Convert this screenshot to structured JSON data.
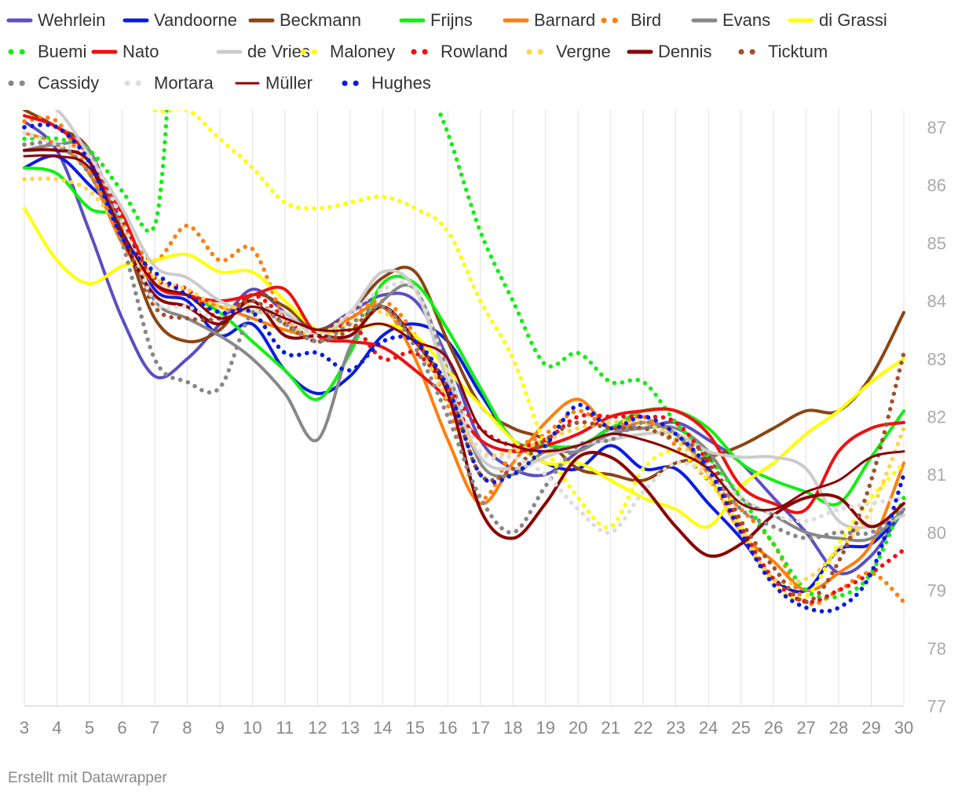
{
  "footer": "Erstellt mit Datawrapper",
  "chart_data": {
    "type": "line",
    "title": "",
    "xlabel": "",
    "ylabel": "",
    "x": [
      3,
      4,
      5,
      6,
      7,
      8,
      9,
      10,
      11,
      12,
      13,
      14,
      15,
      16,
      17,
      18,
      19,
      20,
      21,
      22,
      23,
      24,
      25,
      26,
      27,
      28,
      29,
      30
    ],
    "xlim": [
      3,
      30
    ],
    "ylim": [
      77,
      87
    ],
    "yticks": [
      77,
      78,
      79,
      80,
      81,
      82,
      83,
      84,
      85,
      86,
      87
    ],
    "y_axis_position": "right",
    "grid": "vertical",
    "legend_position": "top",
    "series": [
      {
        "name": "Wehrlein",
        "color": "#5b4fc2",
        "style": "solid",
        "values": [
          87.1,
          86.6,
          85.2,
          83.7,
          82.7,
          83.0,
          83.6,
          84.2,
          83.8,
          83.5,
          83.8,
          84.1,
          84.0,
          83.0,
          81.6,
          81.1,
          81.0,
          81.4,
          81.8,
          81.8,
          81.9,
          81.6,
          81.2,
          80.6,
          80.0,
          79.3,
          79.6,
          80.4
        ]
      },
      {
        "name": "Vandoorne",
        "color": "#0a1ce0",
        "style": "solid",
        "values": [
          86.3,
          86.5,
          86.0,
          85.4,
          84.2,
          84.0,
          83.4,
          83.6,
          82.8,
          82.4,
          82.7,
          83.4,
          83.6,
          83.3,
          82.4,
          81.6,
          81.2,
          81.1,
          81.5,
          81.1,
          81.1,
          80.5,
          79.9,
          79.2,
          79.0,
          79.7,
          79.8,
          80.4
        ]
      },
      {
        "name": "Beckmann",
        "color": "#8b4513",
        "style": "solid",
        "values": [
          87.3,
          87.0,
          86.6,
          85.2,
          83.7,
          83.3,
          83.5,
          84.1,
          83.9,
          83.5,
          83.8,
          84.4,
          84.5,
          83.3,
          82.2,
          81.8,
          81.6,
          81.1,
          81.0,
          80.9,
          81.2,
          81.3,
          81.5,
          81.8,
          82.1,
          82.1,
          82.7,
          83.8
        ]
      },
      {
        "name": "Frijns",
        "color": "#11f011",
        "style": "solid",
        "values": [
          86.3,
          86.2,
          85.6,
          85.4,
          84.3,
          84.1,
          83.8,
          83.3,
          82.8,
          82.3,
          83.1,
          84.3,
          84.3,
          83.5,
          82.5,
          81.6,
          81.5,
          81.5,
          81.8,
          82.1,
          82.1,
          81.8,
          81.2,
          80.9,
          80.7,
          80.5,
          81.3,
          82.1
        ]
      },
      {
        "name": "Barnard",
        "color": "#ff7f0e",
        "style": "solid",
        "values": [
          86.9,
          86.7,
          86.2,
          85.0,
          84.3,
          84.1,
          83.9,
          83.7,
          83.5,
          83.4,
          83.7,
          83.9,
          83.0,
          81.6,
          80.5,
          81.2,
          81.9,
          82.3,
          81.8,
          81.9,
          81.7,
          81.0,
          80.0,
          79.5,
          79.0,
          79.3,
          79.8,
          81.2
        ]
      },
      {
        "name": "Bird",
        "color": "#ff7f0e",
        "style": "dotted",
        "values": [
          87.1,
          87.1,
          86.2,
          85.3,
          84.7,
          85.3,
          84.7,
          84.9,
          83.7,
          83.4,
          83.7,
          84.0,
          83.4,
          82.2,
          80.6,
          81.4,
          81.7,
          82.1,
          81.8,
          82.0,
          81.5,
          80.9,
          80.4,
          79.8,
          78.8,
          79.0,
          79.3,
          78.8
        ]
      },
      {
        "name": "Evans",
        "color": "#888888",
        "style": "solid",
        "values": [
          86.6,
          86.7,
          86.6,
          85.2,
          84.0,
          83.7,
          83.4,
          83.0,
          82.4,
          81.6,
          83.2,
          84.0,
          84.2,
          82.8,
          81.2,
          81.0,
          81.4,
          81.4,
          81.7,
          81.8,
          81.8,
          81.4,
          80.6,
          80.3,
          80.0,
          79.9,
          79.9,
          80.4
        ]
      },
      {
        "name": "di Grassi",
        "color": "#ffff00",
        "style": "solid",
        "values": [
          85.6,
          84.7,
          84.3,
          84.6,
          84.7,
          84.8,
          84.5,
          84.5,
          84.0,
          83.5,
          83.5,
          83.6,
          83.4,
          82.8,
          82.2,
          81.6,
          81.2,
          81.2,
          80.9,
          80.6,
          80.4,
          80.1,
          80.8,
          81.2,
          81.7,
          82.1,
          82.6,
          83.0
        ]
      },
      {
        "name": "Buemi",
        "color": "#11f011",
        "style": "dotted",
        "values": [
          86.8,
          86.8,
          86.6,
          85.9,
          85.3,
          null,
          null,
          null,
          null,
          null,
          null,
          null,
          null,
          86.9,
          85.2,
          84.0,
          82.9,
          83.1,
          82.6,
          82.6,
          81.9,
          81.3,
          80.6,
          79.8,
          79.0,
          78.9,
          79.3,
          80.6
        ]
      },
      {
        "name": "Nato",
        "color": "#ee1111",
        "style": "solid",
        "values": [
          87.2,
          87.0,
          86.5,
          85.5,
          84.3,
          84.1,
          84.0,
          84.1,
          84.2,
          83.4,
          83.3,
          83.2,
          82.8,
          82.3,
          81.6,
          81.4,
          81.5,
          81.7,
          82.0,
          82.1,
          82.1,
          81.7,
          80.8,
          80.5,
          80.4,
          81.4,
          81.8,
          81.9
        ]
      },
      {
        "name": "de Vries",
        "color": "#cccccc",
        "style": "solid",
        "values": [
          87.4,
          87.3,
          86.5,
          85.6,
          84.6,
          84.4,
          84.0,
          83.8,
          83.8,
          83.4,
          83.8,
          84.5,
          84.2,
          82.6,
          81.3,
          81.1,
          81.3,
          81.5,
          81.6,
          81.7,
          81.7,
          81.4,
          81.3,
          81.3,
          81.1,
          80.2,
          80.1,
          80.3
        ]
      },
      {
        "name": "Maloney",
        "color": "#ffff00",
        "style": "dotted",
        "values": [
          null,
          null,
          null,
          null,
          87.3,
          87.3,
          86.8,
          86.3,
          85.7,
          85.6,
          85.7,
          85.8,
          85.6,
          85.2,
          84.0,
          83.0,
          81.5,
          80.6,
          80.1,
          81.1,
          81.4,
          80.9,
          80.1,
          79.1,
          78.9,
          79.8,
          80.6,
          81.2
        ]
      },
      {
        "name": "Rowland",
        "color": "#ee1111",
        "style": "dotted",
        "values": [
          87.0,
          87.0,
          86.4,
          85.4,
          84.4,
          84.2,
          83.7,
          84.1,
          83.7,
          83.3,
          83.6,
          83.0,
          83.1,
          82.5,
          81.8,
          81.5,
          81.6,
          82.0,
          82.0,
          82.0,
          81.9,
          81.2,
          80.1,
          79.2,
          78.8,
          79.0,
          79.3,
          79.7
        ]
      },
      {
        "name": "Vergne",
        "color": "#ffd54a",
        "style": "dotted",
        "values": [
          86.1,
          86.1,
          85.9,
          85.2,
          84.4,
          84.2,
          83.9,
          83.9,
          83.6,
          83.4,
          83.6,
          83.8,
          83.3,
          82.3,
          81.4,
          81.4,
          81.6,
          81.8,
          81.9,
          81.9,
          81.6,
          81.0,
          80.0,
          79.2,
          79.2,
          79.7,
          80.4,
          81.8
        ]
      },
      {
        "name": "Dennis",
        "color": "#8b0000",
        "style": "solid",
        "values": [
          86.6,
          86.6,
          86.4,
          85.1,
          84.1,
          83.9,
          83.6,
          84.0,
          83.4,
          83.4,
          83.4,
          83.9,
          83.3,
          82.4,
          80.4,
          79.9,
          80.5,
          81.3,
          81.3,
          80.8,
          80.1,
          79.6,
          79.8,
          80.3,
          80.6,
          80.6,
          80.1,
          80.5
        ]
      },
      {
        "name": "Ticktum",
        "color": "#a0522d",
        "style": "dotted",
        "values": [
          86.7,
          86.7,
          86.2,
          85.2,
          83.9,
          83.7,
          83.7,
          84.0,
          83.6,
          83.3,
          83.5,
          83.9,
          83.3,
          82.5,
          81.0,
          81.1,
          81.6,
          81.9,
          81.8,
          81.8,
          81.6,
          81.3,
          80.2,
          79.4,
          78.8,
          79.5,
          80.9,
          83.1
        ]
      },
      {
        "name": "Cassidy",
        "color": "#888888",
        "style": "dotted",
        "values": [
          86.7,
          86.7,
          86.2,
          85.0,
          83.0,
          82.6,
          82.5,
          83.8,
          83.6,
          83.3,
          83.6,
          83.9,
          83.2,
          82.0,
          80.6,
          80.0,
          80.8,
          81.5,
          81.6,
          81.9,
          81.7,
          81.1,
          80.4,
          80.1,
          79.9,
          80.0,
          80.0,
          80.4
        ]
      },
      {
        "name": "Mortara",
        "color": "#dddddd",
        "style": "dotted",
        "values": [
          86.9,
          86.7,
          86.5,
          85.4,
          84.0,
          83.9,
          83.7,
          83.9,
          83.7,
          83.4,
          83.8,
          84.2,
          84.2,
          82.8,
          81.4,
          81.3,
          81.0,
          80.4,
          80.0,
          80.7,
          81.2,
          81.0,
          80.6,
          80.3,
          80.2,
          80.4,
          80.5,
          80.6
        ]
      },
      {
        "name": "Müller",
        "color": "#8b0000",
        "style": "solid-thin",
        "values": [
          86.5,
          86.5,
          86.3,
          85.2,
          84.3,
          84.1,
          83.7,
          83.9,
          83.7,
          83.5,
          83.5,
          83.6,
          83.3,
          83.0,
          81.8,
          81.5,
          81.4,
          81.5,
          81.7,
          81.6,
          81.4,
          81.1,
          80.5,
          80.4,
          80.7,
          80.9,
          81.3,
          81.4
        ]
      },
      {
        "name": "Hughes",
        "color": "#0a1ce0",
        "style": "dotted",
        "values": [
          87.0,
          87.0,
          86.4,
          85.1,
          84.5,
          84.1,
          83.8,
          83.8,
          83.1,
          83.1,
          82.8,
          83.3,
          83.3,
          82.5,
          81.0,
          81.0,
          81.5,
          82.2,
          81.8,
          82.0,
          81.7,
          81.1,
          80.0,
          79.1,
          78.7,
          78.7,
          79.3,
          81.0
        ]
      }
    ]
  }
}
